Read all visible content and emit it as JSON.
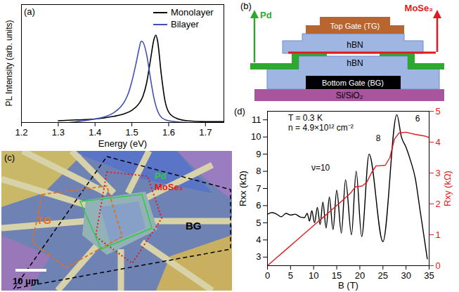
{
  "chart_data": [
    {
      "type": "line",
      "title": "(a)",
      "xlabel": "Energy (eV)",
      "ylabel": "PL Intensity (arb. units)",
      "xlim": [
        1.2,
        1.75
      ],
      "xticks": [
        1.2,
        1.3,
        1.4,
        1.5,
        1.6,
        1.7
      ],
      "ylim": [
        0,
        1.35
      ],
      "tick_labels": "x",
      "legend": "top-right",
      "series": [
        {
          "name": "Monolayer",
          "color": "#000000",
          "x": [
            1.3,
            1.35,
            1.4,
            1.45,
            1.48,
            1.5,
            1.52,
            1.53,
            1.54,
            1.55,
            1.56,
            1.565,
            1.57,
            1.58,
            1.59,
            1.6,
            1.62,
            1.65,
            1.7,
            1.75
          ],
          "values": [
            0.02,
            0.03,
            0.04,
            0.07,
            0.1,
            0.14,
            0.22,
            0.3,
            0.45,
            0.7,
            0.95,
            1.0,
            0.93,
            0.55,
            0.25,
            0.12,
            0.05,
            0.02,
            0.01,
            0.01
          ]
        },
        {
          "name": "Bilayer",
          "color": "#3f51b5",
          "x": [
            1.33,
            1.35,
            1.4,
            1.43,
            1.45,
            1.47,
            1.48,
            1.49,
            1.5,
            1.51,
            1.52,
            1.525,
            1.53,
            1.54,
            1.55,
            1.56,
            1.57,
            1.58,
            1.6,
            1.65
          ],
          "values": [
            0.0,
            0.01,
            0.04,
            0.07,
            0.11,
            0.18,
            0.24,
            0.33,
            0.47,
            0.65,
            0.85,
            0.93,
            0.92,
            0.78,
            0.52,
            0.28,
            0.13,
            0.06,
            0.02,
            0.0
          ]
        }
      ]
    },
    {
      "type": "line",
      "title": "(d)",
      "xlabel": "B (T)",
      "ylabel": "Rxx (kΩ)",
      "y2label": "Rxy (kΩ)",
      "xlim": [
        0,
        35
      ],
      "xticks": [
        0,
        5,
        10,
        15,
        20,
        25,
        30,
        35
      ],
      "ylim": [
        2.5,
        11.5
      ],
      "yticks": [
        3,
        4,
        5,
        6,
        7,
        8,
        9,
        10,
        11
      ],
      "y2lim": [
        0,
        5
      ],
      "y2ticks": [
        0,
        1,
        2,
        3,
        4,
        5
      ],
      "annotations": [
        "T = 0.3 K",
        "n = 4.9×10¹² cm⁻²",
        "ν=10",
        "8",
        "6"
      ],
      "series": [
        {
          "color": "#000000",
          "x": [
            0,
            1,
            2,
            3,
            4,
            5,
            6,
            7,
            8,
            8.6,
            9.1,
            9.6,
            10.2,
            10.8,
            11.4,
            12.0,
            12.7,
            13.4,
            14.2,
            15.0,
            16.0,
            16.9,
            18.2,
            19.2,
            20.4,
            22.0,
            25.0,
            28.0,
            29.0,
            30.0,
            31.0,
            32.0,
            33.0,
            34.0,
            34.6
          ],
          "values": [
            5.5,
            5.6,
            5.5,
            5.35,
            5.55,
            5.45,
            5.5,
            5.35,
            5.3,
            5.55,
            5.1,
            5.7,
            5.0,
            5.9,
            4.9,
            6.2,
            4.7,
            6.5,
            4.6,
            6.9,
            4.4,
            7.5,
            4.3,
            8.0,
            4.2,
            9.0,
            3.9,
            11.3,
            10.0,
            9.4,
            8.6,
            7.6,
            5.8,
            4.0,
            2.9
          ]
        },
        {
          "color": "#e31a1c",
          "axis": "y2",
          "x": [
            0,
            2,
            4,
            6,
            8,
            10,
            12,
            14,
            16,
            18,
            19,
            20.5,
            21.5,
            22.5,
            23.5,
            25.5,
            26.5,
            27.5,
            28.5,
            30,
            32,
            34,
            35
          ],
          "values": [
            0,
            0.26,
            0.52,
            0.78,
            1.04,
            1.3,
            1.56,
            1.82,
            2.08,
            2.35,
            2.55,
            2.58,
            2.7,
            3.0,
            3.23,
            3.25,
            3.5,
            4.1,
            4.3,
            4.32,
            4.25,
            4.2,
            4.15
          ]
        }
      ]
    }
  ],
  "schematic": {
    "title": "(b)",
    "layers": [
      "Top Gate (TG)",
      "hBN",
      "hBN",
      "Bottom Gate (BG)",
      "Si/SiO₂"
    ],
    "contacts": [
      "Pd",
      "MoSe₂"
    ]
  },
  "micrograph": {
    "title": "(c)",
    "labels": [
      "Pd",
      "MoSe₂",
      "TG",
      "BG"
    ],
    "scale_bar": "10 μm"
  }
}
